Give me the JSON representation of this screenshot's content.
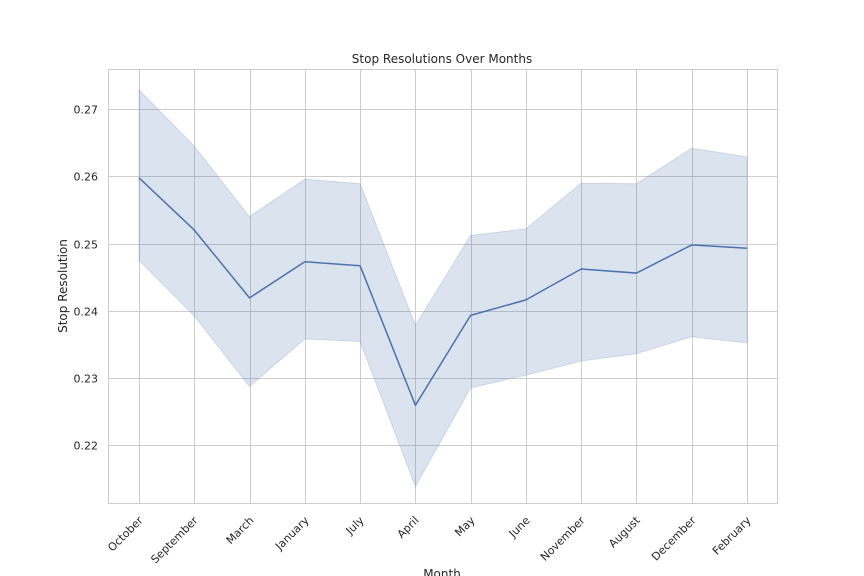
{
  "chart_data": {
    "type": "line",
    "title": "Stop Resolutions Over Months",
    "xlabel": "Month",
    "ylabel": "Stop Resolution",
    "categories": [
      "October",
      "September",
      "March",
      "January",
      "July",
      "April",
      "May",
      "June",
      "November",
      "August",
      "December",
      "February"
    ],
    "series": [
      {
        "values": [
          0.2598,
          0.252,
          0.2419,
          0.2473,
          0.2467,
          0.2259,
          0.2393,
          0.2416,
          0.2462,
          0.2456,
          0.2498,
          0.2493
        ],
        "ci_lower": [
          0.2475,
          0.2392,
          0.2287,
          0.2358,
          0.2354,
          0.2138,
          0.2285,
          0.2304,
          0.2325,
          0.2336,
          0.2361,
          0.2352
        ],
        "ci_upper": [
          0.2729,
          0.2645,
          0.254,
          0.2596,
          0.2589,
          0.2378,
          0.2512,
          0.2522,
          0.259,
          0.2589,
          0.2642,
          0.2629
        ],
        "color": "#4c72b0"
      }
    ],
    "ylim": [
      0.2112,
      0.276
    ],
    "yticks": [
      0.22,
      0.23,
      0.24,
      0.25,
      0.26,
      0.27
    ],
    "ytick_labels": [
      "0.22",
      "0.23",
      "0.24",
      "0.25",
      "0.26",
      "0.27"
    ],
    "grid": true,
    "band_color": "#4c72b0"
  }
}
